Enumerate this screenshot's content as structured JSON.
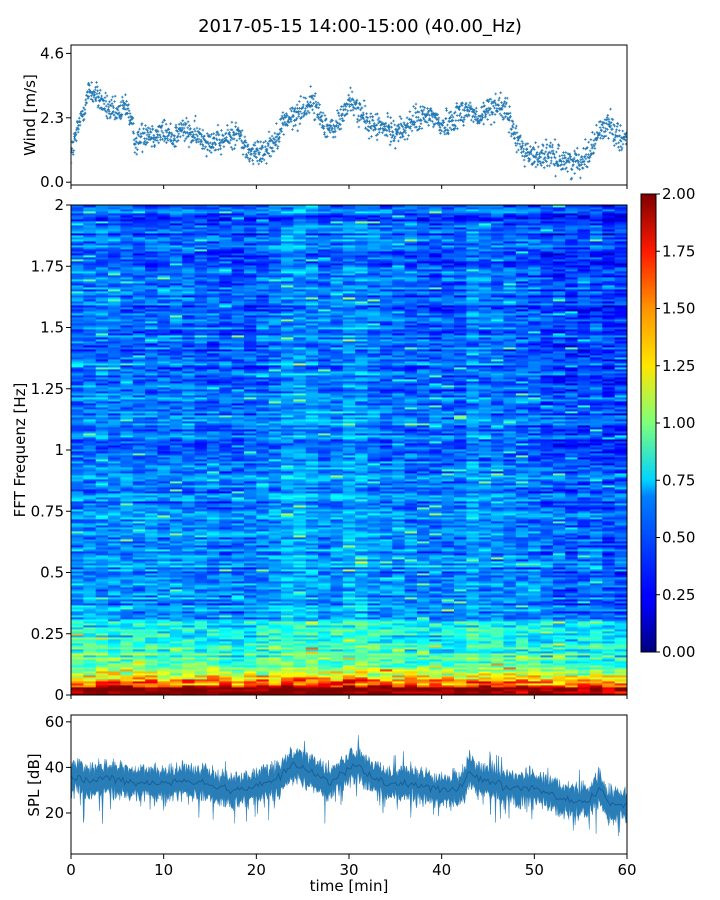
{
  "title": "2017-05-15 14:00-15:00 (40.00_Hz)",
  "chart_data": [
    {
      "type": "scatter",
      "name": "wind",
      "ylabel": "Wind [m/s]",
      "yticks": [
        "0.0",
        "2.3",
        "4.6"
      ],
      "ytick_values": [
        0.0,
        2.3,
        4.6
      ],
      "ylim": [
        -0.1,
        4.9
      ],
      "xlim": [
        0,
        60
      ],
      "x_unit": "min",
      "trend": [
        [
          0,
          1.0
        ],
        [
          1,
          2.2
        ],
        [
          2,
          3.3
        ],
        [
          3,
          3.0
        ],
        [
          4,
          2.6
        ],
        [
          5,
          2.4
        ],
        [
          6,
          2.8
        ],
        [
          7,
          1.4
        ],
        [
          8,
          1.8
        ],
        [
          9,
          1.7
        ],
        [
          10,
          1.8
        ],
        [
          11,
          1.6
        ],
        [
          12,
          1.9
        ],
        [
          13,
          1.7
        ],
        [
          14,
          1.6
        ],
        [
          15,
          1.5
        ],
        [
          16,
          1.4
        ],
        [
          17,
          1.6
        ],
        [
          18,
          1.8
        ],
        [
          19,
          1.1
        ],
        [
          20,
          1.0
        ],
        [
          21,
          1.2
        ],
        [
          22,
          1.5
        ],
        [
          23,
          2.2
        ],
        [
          24,
          2.3
        ],
        [
          25,
          2.6
        ],
        [
          26,
          2.9
        ],
        [
          27,
          2.3
        ],
        [
          28,
          1.8
        ],
        [
          29,
          2.2
        ],
        [
          30,
          2.9
        ],
        [
          31,
          2.6
        ],
        [
          32,
          2.1
        ],
        [
          33,
          2.0
        ],
        [
          34,
          1.9
        ],
        [
          35,
          1.8
        ],
        [
          36,
          1.9
        ],
        [
          37,
          2.2
        ],
        [
          38,
          2.3
        ],
        [
          39,
          2.4
        ],
        [
          40,
          2.0
        ],
        [
          41,
          2.2
        ],
        [
          42,
          2.5
        ],
        [
          43,
          2.6
        ],
        [
          44,
          2.2
        ],
        [
          45,
          2.6
        ],
        [
          46,
          2.8
        ],
        [
          47,
          2.5
        ],
        [
          48,
          1.6
        ],
        [
          49,
          1.1
        ],
        [
          50,
          0.9
        ],
        [
          51,
          1.0
        ],
        [
          52,
          0.9
        ],
        [
          53,
          0.8
        ],
        [
          54,
          0.7
        ],
        [
          55,
          0.8
        ],
        [
          56,
          1.1
        ],
        [
          57,
          1.8
        ],
        [
          58,
          2.1
        ],
        [
          59,
          1.7
        ],
        [
          60,
          1.5
        ]
      ]
    },
    {
      "type": "heatmap",
      "name": "spectrogram",
      "ylabel": "FFT Frequenz [Hz]",
      "yticks": [
        "0",
        "0.25",
        "0.5",
        "0.75",
        "1",
        "1.25",
        "1.5",
        "1.75",
        "2"
      ],
      "ylim": [
        0,
        2
      ],
      "xlim": [
        0,
        60
      ],
      "colorbar": {
        "ticks": [
          "0.00",
          "0.25",
          "0.50",
          "0.75",
          "1.00",
          "1.25",
          "1.50",
          "1.75",
          "2.00"
        ],
        "range": [
          0,
          2
        ],
        "colormap": "jet"
      },
      "note": "amplitude highest (1.5-2.0) below 0.1 Hz, mostly 0.1-0.5 above 0.3 Hz"
    },
    {
      "type": "area",
      "name": "spl",
      "ylabel": "SPL [dB]",
      "xlabel": "time [min]",
      "xticks": [
        "0",
        "10",
        "20",
        "30",
        "40",
        "50",
        "60"
      ],
      "xtick_values": [
        0,
        10,
        20,
        30,
        40,
        50,
        60
      ],
      "yticks": [
        "20",
        "40",
        "60"
      ],
      "ytick_values": [
        20,
        40,
        60
      ],
      "ylim": [
        2,
        63
      ],
      "xlim": [
        0,
        60
      ],
      "trend": [
        [
          0,
          36
        ],
        [
          2,
          34
        ],
        [
          4,
          35
        ],
        [
          6,
          34
        ],
        [
          8,
          33
        ],
        [
          10,
          33
        ],
        [
          12,
          34
        ],
        [
          14,
          33
        ],
        [
          16,
          31
        ],
        [
          18,
          30
        ],
        [
          20,
          32
        ],
        [
          22,
          35
        ],
        [
          23,
          38
        ],
        [
          24,
          41
        ],
        [
          26,
          38
        ],
        [
          28,
          33
        ],
        [
          30,
          40
        ],
        [
          31,
          41
        ],
        [
          32,
          37
        ],
        [
          34,
          33
        ],
        [
          36,
          33
        ],
        [
          38,
          32
        ],
        [
          40,
          30
        ],
        [
          42,
          31
        ],
        [
          43,
          38
        ],
        [
          44,
          35
        ],
        [
          46,
          33
        ],
        [
          48,
          31
        ],
        [
          50,
          31
        ],
        [
          52,
          28
        ],
        [
          54,
          25
        ],
        [
          56,
          26
        ],
        [
          57,
          31
        ],
        [
          58,
          24
        ],
        [
          60,
          24
        ]
      ]
    }
  ]
}
